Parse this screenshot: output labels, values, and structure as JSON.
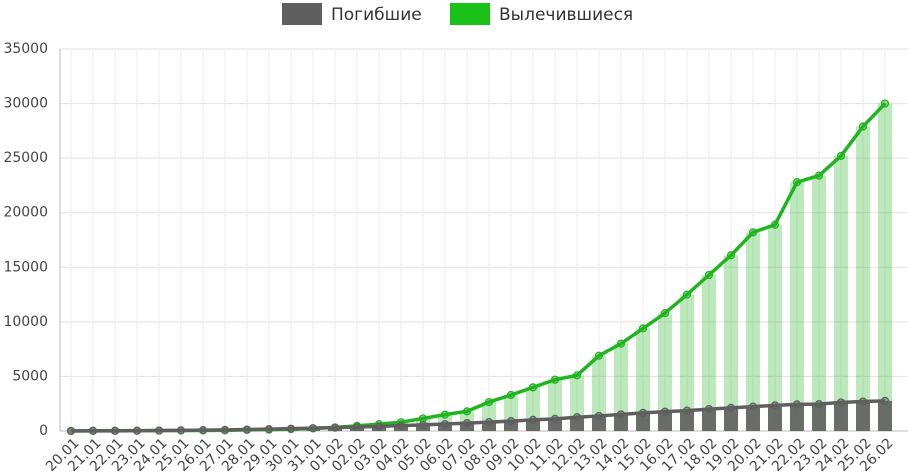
{
  "chart_data": {
    "type": "bar-line",
    "categories": [
      "20.01",
      "21.01",
      "22.01",
      "23.01",
      "24.01",
      "25.01",
      "26.01",
      "27.01",
      "28.01",
      "29.01",
      "30.01",
      "31.01",
      "01.02",
      "02.02",
      "03.02",
      "04.02",
      "05.02",
      "06.02",
      "07.02",
      "08.02",
      "09.02",
      "10.02",
      "11.02",
      "12.02",
      "13.02",
      "14.02",
      "15.02",
      "16.02",
      "17.02",
      "18.02",
      "19.02",
      "20.02",
      "21.02",
      "22.02",
      "23.02",
      "24.02",
      "25.02",
      "26.02"
    ],
    "series": [
      {
        "name": "Погибшие",
        "color": "#5f5f5f",
        "values": [
          6,
          9,
          17,
          25,
          41,
          56,
          80,
          106,
          132,
          170,
          213,
          259,
          304,
          361,
          425,
          490,
          563,
          636,
          722,
          811,
          908,
          1016,
          1113,
          1259,
          1380,
          1523,
          1665,
          1770,
          1868,
          2004,
          2118,
          2236,
          2345,
          2442,
          2462,
          2618,
          2699,
          2763
        ]
      },
      {
        "name": "Вылечившиеся",
        "color": "#1fb51f",
        "values": [
          0,
          25,
          28,
          34,
          38,
          49,
          51,
          60,
          103,
          124,
          171,
          243,
          328,
          475,
          632,
          800,
          1150,
          1500,
          1800,
          2650,
          3300,
          4000,
          4700,
          5100,
          6900,
          8000,
          9400,
          10800,
          12500,
          14300,
          16100,
          18200,
          18900,
          22800,
          23400,
          25200,
          27900,
          30000
        ]
      }
    ],
    "ylim": [
      0,
      35000
    ],
    "yticks": [
      0,
      5000,
      10000,
      15000,
      20000,
      25000,
      30000,
      35000
    ],
    "grid": true
  }
}
